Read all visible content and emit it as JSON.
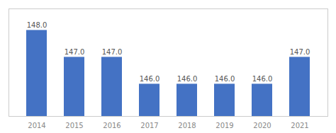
{
  "chart_data": {
    "type": "bar",
    "categories": [
      "2014",
      "2015",
      "2016",
      "2017",
      "2018",
      "2019",
      "2020",
      "2021"
    ],
    "values": [
      148.0,
      147.0,
      147.0,
      146.0,
      146.0,
      146.0,
      146.0,
      147.0
    ],
    "value_labels": [
      "148.0",
      "147.0",
      "147.0",
      "146.0",
      "146.0",
      "146.0",
      "146.0",
      "147.0"
    ],
    "color": "#4472C4",
    "ylim": [
      144.8,
      148.8
    ],
    "data_labels": true,
    "tick_labels": "x",
    "grid": false
  }
}
